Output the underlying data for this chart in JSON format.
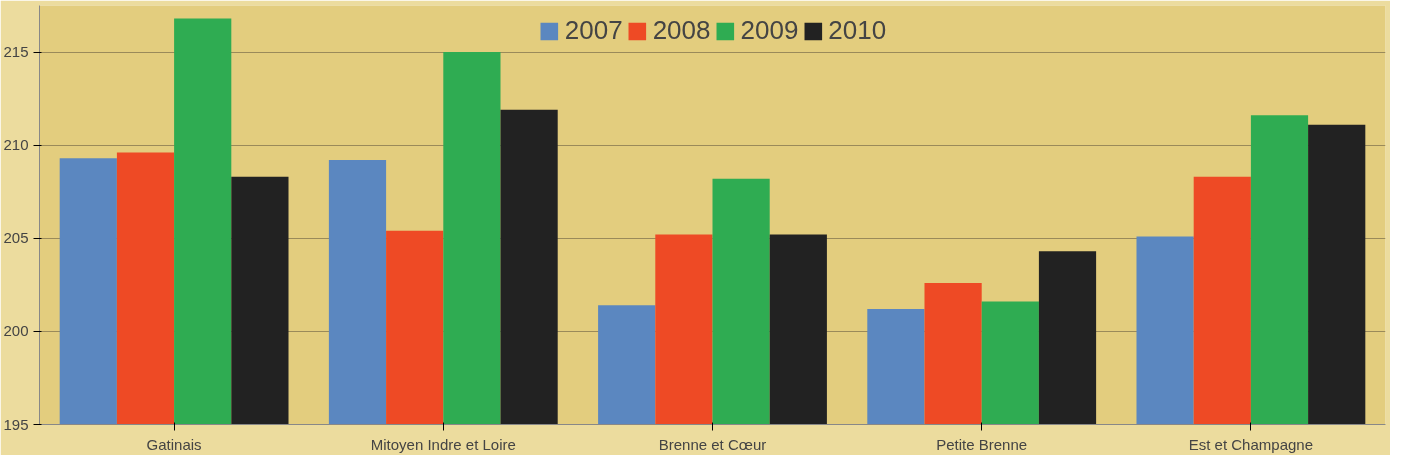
{
  "chart_data": {
    "type": "bar",
    "categories": [
      "Gatinais",
      "Mitoyen Indre et Loire",
      "Brenne et Cœur",
      "Petite Brenne",
      "Est et Champagne"
    ],
    "series": [
      {
        "name": "2007",
        "color": "#5b87c0",
        "values": [
          209.3,
          209.2,
          201.4,
          201.2,
          205.1
        ]
      },
      {
        "name": "2008",
        "color": "#ee4a25",
        "values": [
          209.6,
          205.4,
          205.2,
          202.6,
          208.3
        ]
      },
      {
        "name": "2009",
        "color": "#2fac52",
        "values": [
          216.8,
          215.0,
          208.2,
          201.6,
          211.6
        ]
      },
      {
        "name": "2010",
        "color": "#222222",
        "values": [
          208.3,
          211.9,
          205.2,
          204.3,
          211.1
        ]
      }
    ],
    "ylim": [
      195,
      217.5
    ],
    "yticks": [
      195,
      200,
      205,
      210,
      215
    ],
    "grid": "y",
    "legend": "top"
  }
}
